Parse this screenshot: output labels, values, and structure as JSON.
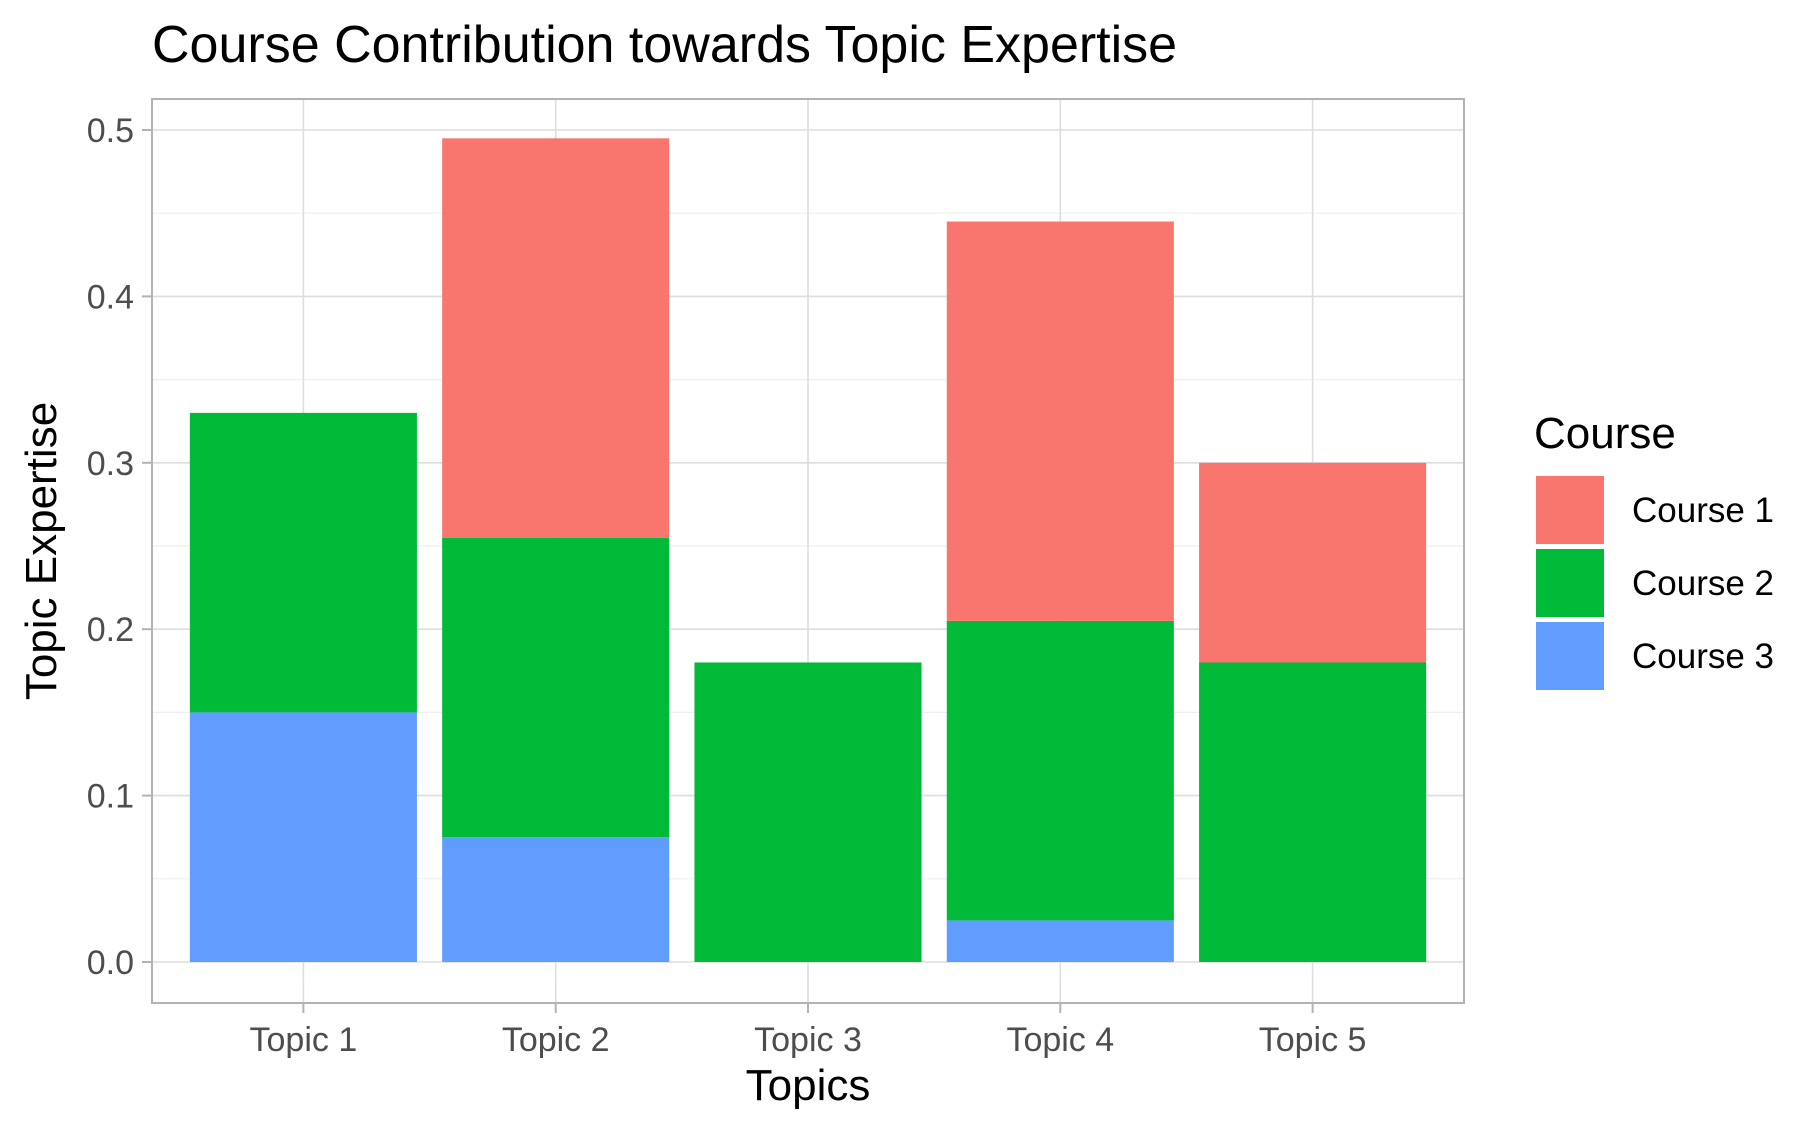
{
  "chart_data": {
    "type": "bar",
    "stacked": true,
    "title": "Course Contribution towards Topic Expertise",
    "xlabel": "Topics",
    "ylabel": "Topic Expertise",
    "categories": [
      "Topic 1",
      "Topic 2",
      "Topic 3",
      "Topic 4",
      "Topic 5"
    ],
    "ylim": [
      0,
      0.52
    ],
    "yticks": [
      0.0,
      0.1,
      0.2,
      0.3,
      0.4,
      0.5
    ],
    "ytick_labels": [
      "0.0",
      "0.1",
      "0.2",
      "0.3",
      "0.4",
      "0.5"
    ],
    "grid": true,
    "legend": {
      "title": "Course",
      "position": "right"
    },
    "stack_order_bottom_to_top": [
      "Course 3",
      "Course 2",
      "Course 1"
    ],
    "series": [
      {
        "name": "Course 1",
        "color": "#F8766D",
        "values": [
          0.0,
          0.24,
          0.0,
          0.24,
          0.12
        ]
      },
      {
        "name": "Course 2",
        "color": "#00BA38",
        "values": [
          0.18,
          0.18,
          0.18,
          0.18,
          0.18
        ]
      },
      {
        "name": "Course 3",
        "color": "#619CFF",
        "values": [
          0.15,
          0.075,
          0.0,
          0.025,
          0.0
        ]
      }
    ]
  }
}
